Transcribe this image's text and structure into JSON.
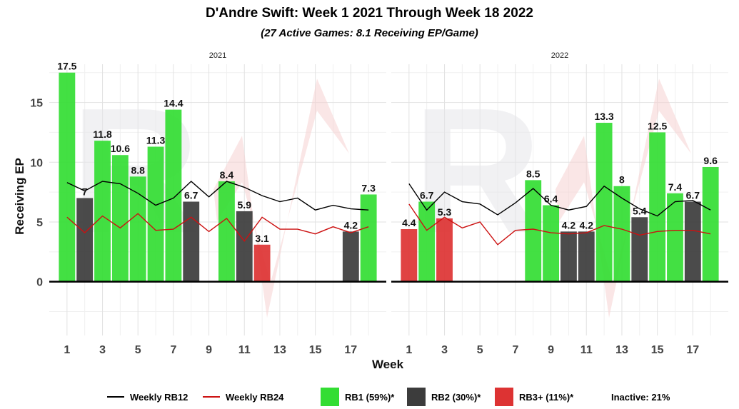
{
  "header": {
    "title": "D'Andre Swift: Week 1 2021 Through Week 18 2022",
    "subtitle": "(27 Active Games: 8.1 Receiving EP/Game)"
  },
  "chart_data": {
    "type": "bar",
    "xlabel": "Week",
    "ylabel": "Receiving EP",
    "ylim": [
      -4.5,
      18.2
    ],
    "yticks": [
      0,
      5,
      10,
      15
    ],
    "xticks": [
      1,
      3,
      5,
      7,
      9,
      11,
      13,
      15,
      17
    ],
    "xlim": [
      0,
      19
    ],
    "grid": true,
    "legend_position": "bottom",
    "colors": {
      "RB1": "#33dd33",
      "RB2": "#3c3c3c",
      "RB3": "#dd3333",
      "rb12_line": "#000000",
      "rb24_line": "#cc1111"
    },
    "panels": [
      {
        "facet_label": "2021",
        "bars": [
          {
            "week": 1,
            "value": 17.5,
            "label": "17.5",
            "tier": "RB1"
          },
          {
            "week": 2,
            "value": 7.0,
            "label": "7",
            "tier": "RB2"
          },
          {
            "week": 3,
            "value": 11.8,
            "label": "11.8",
            "tier": "RB1"
          },
          {
            "week": 4,
            "value": 10.6,
            "label": "10.6",
            "tier": "RB1"
          },
          {
            "week": 5,
            "value": 8.8,
            "label": "8.8",
            "tier": "RB1"
          },
          {
            "week": 6,
            "value": 11.3,
            "label": "11.3",
            "tier": "RB1"
          },
          {
            "week": 7,
            "value": 14.4,
            "label": "14.4",
            "tier": "RB1"
          },
          {
            "week": 8,
            "value": 6.7,
            "label": "6.7",
            "tier": "RB2"
          },
          {
            "week": 10,
            "value": 8.4,
            "label": "8.4",
            "tier": "RB1"
          },
          {
            "week": 11,
            "value": 5.9,
            "label": "5.9",
            "tier": "RB2"
          },
          {
            "week": 12,
            "value": 3.1,
            "label": "3.1",
            "tier": "RB3"
          },
          {
            "week": 17,
            "value": 4.2,
            "label": "4.2",
            "tier": "RB2"
          },
          {
            "week": 18,
            "value": 7.3,
            "label": "7.3",
            "tier": "RB1"
          }
        ],
        "rb12": [
          [
            1,
            8.3
          ],
          [
            2,
            7.6
          ],
          [
            3,
            8.4
          ],
          [
            4,
            8.2
          ],
          [
            5,
            7.4
          ],
          [
            6,
            6.4
          ],
          [
            7,
            7.0
          ],
          [
            8,
            8.4
          ],
          [
            9,
            7.1
          ],
          [
            10,
            8.4
          ],
          [
            11,
            7.9
          ],
          [
            12,
            7.2
          ],
          [
            13,
            6.7
          ],
          [
            14,
            7.0
          ],
          [
            15,
            6.0
          ],
          [
            16,
            6.4
          ],
          [
            17,
            6.1
          ],
          [
            18,
            6.0
          ]
        ],
        "rb24": [
          [
            1,
            5.4
          ],
          [
            2,
            4.1
          ],
          [
            3,
            5.5
          ],
          [
            4,
            4.5
          ],
          [
            5,
            5.7
          ],
          [
            6,
            4.3
          ],
          [
            7,
            4.4
          ],
          [
            8,
            5.4
          ],
          [
            9,
            4.2
          ],
          [
            10,
            5.3
          ],
          [
            11,
            3.4
          ],
          [
            12,
            5.4
          ],
          [
            13,
            4.4
          ],
          [
            14,
            4.4
          ],
          [
            15,
            4.0
          ],
          [
            16,
            4.6
          ],
          [
            17,
            4.1
          ],
          [
            18,
            4.6
          ]
        ]
      },
      {
        "facet_label": "2022",
        "bars": [
          {
            "week": 1,
            "value": 4.4,
            "label": "4.4",
            "tier": "RB3"
          },
          {
            "week": 2,
            "value": 6.7,
            "label": "6.7",
            "tier": "RB1"
          },
          {
            "week": 3,
            "value": 5.3,
            "label": "5.3",
            "tier": "RB3"
          },
          {
            "week": 8,
            "value": 8.5,
            "label": "8.5",
            "tier": "RB1"
          },
          {
            "week": 9,
            "value": 6.4,
            "label": "6.4",
            "tier": "RB1"
          },
          {
            "week": 10,
            "value": 4.2,
            "label": "4.2",
            "tier": "RB2"
          },
          {
            "week": 11,
            "value": 4.2,
            "label": "4.2",
            "tier": "RB2"
          },
          {
            "week": 12,
            "value": 13.3,
            "label": "13.3",
            "tier": "RB1"
          },
          {
            "week": 13,
            "value": 8.0,
            "label": "8",
            "tier": "RB1"
          },
          {
            "week": 14,
            "value": 5.4,
            "label": "5.4",
            "tier": "RB2"
          },
          {
            "week": 15,
            "value": 12.5,
            "label": "12.5",
            "tier": "RB1"
          },
          {
            "week": 16,
            "value": 7.4,
            "label": "7.4",
            "tier": "RB1"
          },
          {
            "week": 17,
            "value": 6.7,
            "label": "6.7",
            "tier": "RB2"
          },
          {
            "week": 18,
            "value": 9.6,
            "label": "9.6",
            "tier": "RB1"
          }
        ],
        "rb12": [
          [
            1,
            8.2
          ],
          [
            2,
            6.0
          ],
          [
            3,
            7.5
          ],
          [
            4,
            6.7
          ],
          [
            5,
            6.5
          ],
          [
            6,
            5.6
          ],
          [
            7,
            6.6
          ],
          [
            8,
            7.8
          ],
          [
            9,
            6.4
          ],
          [
            10,
            6.0
          ],
          [
            11,
            6.3
          ],
          [
            12,
            8.0
          ],
          [
            13,
            7.0
          ],
          [
            14,
            6.1
          ],
          [
            15,
            5.5
          ],
          [
            16,
            6.7
          ],
          [
            17,
            6.8
          ],
          [
            18,
            6.0
          ]
        ],
        "rb24": [
          [
            1,
            6.5
          ],
          [
            2,
            4.3
          ],
          [
            3,
            5.4
          ],
          [
            4,
            4.5
          ],
          [
            5,
            5.0
          ],
          [
            6,
            3.1
          ],
          [
            7,
            4.3
          ],
          [
            8,
            4.4
          ],
          [
            9,
            4.1
          ],
          [
            10,
            4.0
          ],
          [
            11,
            4.1
          ],
          [
            12,
            4.7
          ],
          [
            13,
            4.4
          ],
          [
            14,
            3.9
          ],
          [
            15,
            4.2
          ],
          [
            16,
            4.3
          ],
          [
            17,
            4.3
          ],
          [
            18,
            4.0
          ]
        ]
      }
    ]
  },
  "legend": {
    "rb12_label": "Weekly RB12",
    "rb24_label": "Weekly RB24",
    "rb1_label": "RB1 (59%)*",
    "rb2_label": "RB2 (30%)*",
    "rb3_label": "RB3+ (11%)*",
    "inactive_label": "Inactive: 21%"
  }
}
